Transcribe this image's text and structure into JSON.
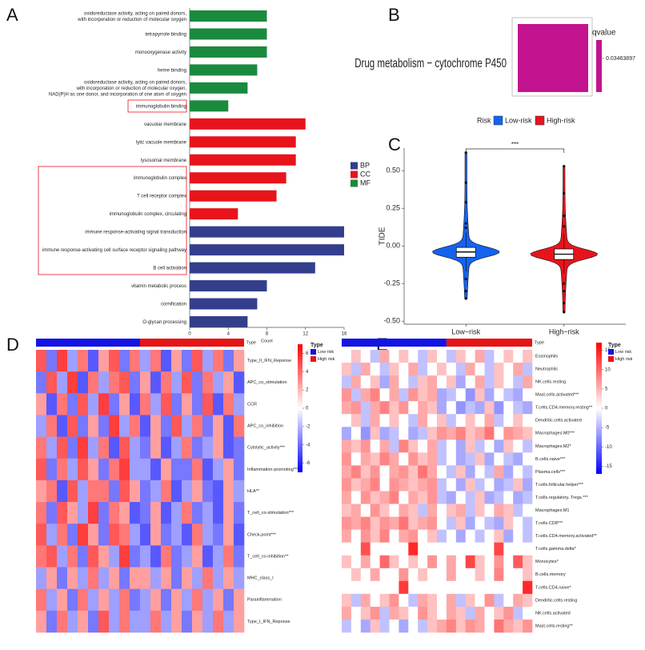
{
  "chart_data": [
    {
      "type": "bar",
      "panel_label": "A",
      "xlabel": "Count",
      "categories": [
        [
          "oxidoreductase activity, acting on paired donors,",
          "with incorporation or reduction of molecular oxygen"
        ],
        [
          "tetrapyrrole binding"
        ],
        [
          "monooxygenase activity"
        ],
        [
          "heme binding"
        ],
        [
          "oxidoreductase activity, acting on paired donors,",
          "with incorporation or reduction of molecular oxygen,",
          "NAD(P)H as one donor, and incorporation of one atom of oxygen"
        ],
        [
          "immunoglobulin binding"
        ],
        [
          "vacuolar membrane"
        ],
        [
          "lytic vacuole membrane"
        ],
        [
          "lysosomal membrane"
        ],
        [
          "immunoglobulin complex"
        ],
        [
          "T cell receptor complex"
        ],
        [
          "immunoglobulin complex, circulating"
        ],
        [
          "immune response-activating signal transduction"
        ],
        [
          "immune response-activating cell surface receptor signaling pathway"
        ],
        [
          "B cell activation"
        ],
        [
          "vitamin metabolic process"
        ],
        [
          "cornification"
        ],
        [
          "O-glycan processing"
        ]
      ],
      "series": [
        {
          "name": "BP",
          "color": "#333f8c",
          "values": [
            null,
            null,
            null,
            null,
            null,
            null,
            null,
            null,
            null,
            null,
            null,
            null,
            16,
            16,
            13,
            8,
            7,
            6
          ]
        },
        {
          "name": "CC",
          "color": "#e8141c",
          "values": [
            null,
            null,
            null,
            null,
            null,
            null,
            12,
            11,
            11,
            10,
            9,
            5,
            null,
            null,
            null,
            null,
            null,
            null
          ]
        },
        {
          "name": "MF",
          "color": "#1a8a3e",
          "values": [
            8,
            8,
            8,
            7,
            6,
            4,
            null,
            null,
            null,
            null,
            null,
            null,
            null,
            null,
            null,
            null,
            null,
            null
          ]
        }
      ],
      "xlim": [
        0,
        16
      ],
      "xticks": [
        0,
        4,
        8,
        12,
        16
      ]
    },
    {
      "type": "tile",
      "panel_label": "B",
      "categories": [
        "Drug metabolism − cytochrome P450"
      ],
      "values": [
        0.03463897
      ],
      "color": "#c4138f",
      "legend_title": "qvalue",
      "legend_ticks": [
        0.03463897
      ]
    },
    {
      "type": "violin",
      "panel_label": "C",
      "ylabel": "TIDE",
      "legend_title": "Risk",
      "annotation": "***",
      "categories": [
        "Low−risk",
        "High−risk"
      ],
      "series": [
        {
          "name": "Low-risk",
          "color": "#1463f0",
          "min": -0.17,
          "q1": -0.075,
          "median": -0.04,
          "q3": -0.01,
          "max": 0.09,
          "outliers": [
            0.62,
            0.42,
            0.29,
            0.15,
            0.12,
            -0.22,
            -0.3,
            -0.35
          ]
        },
        {
          "name": "High-risk",
          "color": "#e8141c",
          "min": -0.18,
          "q1": -0.09,
          "median": -0.055,
          "q3": -0.02,
          "max": 0.08,
          "outliers": [
            0.53,
            0.35,
            0.2,
            0.13,
            -0.25,
            -0.3,
            -0.38,
            -0.44
          ]
        }
      ],
      "ylim": [
        -0.52,
        0.65
      ],
      "yticks": [
        {
          "value": -0.5,
          "label": "-0.50"
        },
        {
          "value": -0.25,
          "label": "-0.25"
        },
        {
          "value": 0,
          "label": "0.00"
        },
        {
          "value": 0.25,
          "label": "0.25"
        },
        {
          "value": 0.5,
          "label": "0.50"
        }
      ]
    },
    {
      "type": "heatmap",
      "panel_label": "D",
      "legend_title": "Type",
      "groups": [
        {
          "name": "Low risk",
          "color": "#1414e6",
          "size": 10
        },
        {
          "name": "High risk",
          "color": "#e61414",
          "size": 10
        }
      ],
      "rows": [
        "Type_II_IFN_Reponse",
        "APC_co_stimulation",
        "CCR",
        "APC_co_inhibition",
        "Cytolytic_activity***",
        "Inflammation-promoting***",
        "HLA**",
        "T_cell_co-stimulation***",
        "Check-point***",
        "T_cell_co-inhibition**",
        "MHC_class_I",
        "Parainflammation",
        "Type_I_IFN_Reponse"
      ],
      "values": [
        [
          3,
          -2,
          4,
          -1,
          2,
          -3,
          1,
          3,
          -2,
          2,
          -1,
          2,
          -3,
          1,
          -2,
          3,
          -1,
          2,
          -2,
          1
        ],
        [
          -2,
          3,
          -1,
          4,
          -3,
          2,
          -1,
          2,
          3,
          -2,
          1,
          -3,
          2,
          -1,
          3,
          -2,
          2,
          -1,
          1,
          -3
        ],
        [
          1,
          -3,
          2,
          -2,
          3,
          -1,
          4,
          -2,
          1,
          -3,
          2,
          -1,
          3,
          -2,
          1,
          -2,
          3,
          -3,
          2,
          -1
        ],
        [
          -1,
          2,
          -3,
          3,
          -2,
          1,
          -2,
          4,
          -1,
          2,
          -3,
          1,
          -2,
          3,
          -1,
          2,
          -2,
          1,
          -3,
          2
        ],
        [
          2,
          -1,
          3,
          -2,
          4,
          -1,
          2,
          -3,
          3,
          -1,
          -2,
          1,
          -3,
          -1,
          2,
          -2,
          -1,
          1,
          -3,
          -2
        ],
        [
          3,
          -2,
          2,
          -1,
          3,
          1,
          -2,
          2,
          4,
          -1,
          -1,
          -3,
          1,
          -2,
          -2,
          2,
          -3,
          -1,
          1,
          -2
        ],
        [
          1,
          2,
          -3,
          3,
          -1,
          2,
          2,
          -2,
          3,
          1,
          -2,
          -1,
          2,
          -3,
          -1,
          1,
          -2,
          -3,
          1,
          -1
        ],
        [
          2,
          -2,
          3,
          1,
          -1,
          4,
          -2,
          2,
          1,
          -3,
          -2,
          1,
          -3,
          -1,
          2,
          -2,
          -1,
          -3,
          1,
          -2
        ],
        [
          3,
          -1,
          2,
          -2,
          4,
          1,
          -2,
          3,
          2,
          -1,
          -3,
          1,
          -2,
          -1,
          -3,
          2,
          -1,
          -2,
          1,
          -3
        ],
        [
          2,
          3,
          -1,
          2,
          -2,
          3,
          1,
          -1,
          4,
          -2,
          -1,
          -3,
          2,
          -2,
          -1,
          1,
          -3,
          -1,
          2,
          -2
        ],
        [
          -1,
          1,
          -2,
          1,
          -1,
          2,
          -1,
          1,
          -2,
          1,
          1,
          -1,
          1,
          -2,
          1,
          -1,
          2,
          -1,
          1,
          -1
        ],
        [
          2,
          -1,
          1,
          -2,
          2,
          -1,
          1,
          -1,
          2,
          -2,
          -1,
          1,
          -2,
          1,
          -1,
          2,
          -1,
          1,
          -2,
          1
        ],
        [
          1,
          -2,
          2,
          -1,
          1,
          -2,
          3,
          -1,
          2,
          -1,
          -1,
          2,
          -1,
          1,
          -2,
          1,
          -1,
          2,
          -1,
          1
        ]
      ],
      "clim": [
        -7,
        7
      ],
      "colorbar_ticks": [
        6,
        4,
        2,
        0,
        -2,
        -4,
        -6
      ]
    },
    {
      "type": "heatmap",
      "panel_label": "E",
      "legend_title": "Type",
      "groups": [
        {
          "name": "Low risk",
          "color": "#1414e6",
          "size": 11
        },
        {
          "name": "High risk",
          "color": "#e61414",
          "size": 9
        }
      ],
      "rows": [
        "Eosinophils",
        "Neutrophils",
        "NK.cells.resting",
        "Mast.cells.activated***",
        "T.cells.CD4.memory.resting**",
        "Dendritic.cells.activated",
        "Macrophages.M0***",
        "Macrophages.M2*",
        "B.cells.naive***",
        "Plasma.cells***",
        "T.cells.follicular.helper***",
        "T.cells.regulatory..Tregs.***",
        "Macrophages.M1",
        "T.cells.CD8***",
        "T.cells.CD4.memory.activated**",
        "T.cells.gamma.delta*",
        "Monocytes*",
        "B.cells.memory",
        "T.cells.CD4.naive*",
        "Dendritic.cells.resting",
        "NK.cells.activated",
        "Mast.cells.resting**"
      ],
      "values": [
        [
          0,
          1,
          0,
          -1,
          2,
          0,
          1,
          0,
          -1,
          1,
          0,
          -1,
          1,
          0,
          2,
          -1,
          0,
          1,
          0,
          1
        ],
        [
          1,
          -1,
          2,
          0,
          -1,
          1,
          0,
          2,
          -1,
          0,
          1,
          0,
          -1,
          2,
          0,
          -1,
          1,
          0,
          2,
          -1
        ],
        [
          -1,
          2,
          0,
          1,
          -2,
          2,
          0,
          -1,
          1,
          2,
          0,
          1,
          -2,
          0,
          2,
          -1,
          1,
          0,
          -1,
          2
        ],
        [
          3,
          -1,
          2,
          4,
          0,
          2,
          -1,
          3,
          1,
          2,
          -2,
          -1,
          0,
          -3,
          1,
          -2,
          0,
          -1,
          -2,
          0
        ],
        [
          2,
          3,
          -1,
          2,
          4,
          1,
          3,
          0,
          2,
          1,
          -2,
          0,
          -3,
          -1,
          -2,
          1,
          -3,
          0,
          -1,
          -2
        ],
        [
          0,
          1,
          -1,
          2,
          0,
          1,
          0,
          -1,
          2,
          0,
          1,
          -1,
          0,
          1,
          0,
          2,
          -1,
          0,
          1,
          0
        ],
        [
          -2,
          0,
          -3,
          1,
          -2,
          -1,
          0,
          -2,
          -1,
          1,
          3,
          2,
          4,
          1,
          2,
          5,
          0,
          3,
          2,
          1
        ],
        [
          2,
          1,
          3,
          0,
          2,
          -1,
          4,
          1,
          0,
          2,
          -1,
          0,
          -2,
          1,
          -1,
          0,
          -2,
          1,
          0,
          -1
        ],
        [
          3,
          0,
          2,
          1,
          4,
          2,
          0,
          3,
          1,
          2,
          -1,
          0,
          -2,
          -1,
          1,
          -2,
          0,
          -1,
          -2,
          0
        ],
        [
          2,
          4,
          1,
          3,
          0,
          2,
          3,
          1,
          5,
          2,
          0,
          -1,
          1,
          -2,
          0,
          -1,
          2,
          -2,
          0,
          -1
        ],
        [
          3,
          1,
          2,
          4,
          0,
          3,
          2,
          1,
          2,
          3,
          -1,
          0,
          -2,
          1,
          -1,
          0,
          -2,
          -1,
          1,
          -2
        ],
        [
          2,
          0,
          3,
          1,
          2,
          4,
          0,
          2,
          1,
          3,
          -1,
          -2,
          0,
          -1,
          1,
          -2,
          -1,
          0,
          -2,
          -1
        ],
        [
          1,
          2,
          0,
          3,
          1,
          0,
          2,
          1,
          -1,
          2,
          0,
          1,
          2,
          -1,
          1,
          0,
          2,
          1,
          -1,
          0
        ],
        [
          3,
          2,
          4,
          1,
          3,
          2,
          5,
          1,
          2,
          3,
          0,
          -1,
          1,
          -2,
          0,
          -1,
          -2,
          1,
          0,
          -1
        ],
        [
          2,
          0,
          3,
          1,
          4,
          0,
          2,
          3,
          0,
          1,
          -1,
          0,
          -2,
          0,
          -1,
          0,
          1,
          -2,
          0,
          -1
        ],
        [
          0,
          0,
          8,
          0,
          0,
          0,
          0,
          12,
          0,
          0,
          0,
          0,
          0,
          0,
          0,
          0,
          9,
          0,
          0,
          0
        ],
        [
          1,
          0,
          2,
          0,
          6,
          1,
          0,
          1,
          0,
          3,
          0,
          2,
          0,
          9,
          1,
          0,
          3,
          0,
          7,
          1
        ],
        [
          0,
          1,
          0,
          2,
          0,
          0,
          3,
          0,
          1,
          0,
          0,
          2,
          0,
          0,
          1,
          0,
          4,
          0,
          0,
          1
        ],
        [
          0,
          0,
          0,
          0,
          0,
          0,
          10,
          0,
          0,
          0,
          0,
          0,
          0,
          0,
          0,
          0,
          0,
          0,
          0,
          12
        ],
        [
          1,
          -1,
          2,
          0,
          1,
          3,
          0,
          -1,
          2,
          1,
          0,
          2,
          -1,
          1,
          0,
          3,
          -1,
          0,
          2,
          1
        ],
        [
          2,
          0,
          1,
          3,
          -1,
          2,
          1,
          0,
          3,
          1,
          0,
          2,
          1,
          -1,
          2,
          0,
          1,
          3,
          -1,
          0
        ],
        [
          -1,
          0,
          -2,
          1,
          -1,
          0,
          -2,
          0,
          -1,
          1,
          2,
          4,
          1,
          3,
          2,
          0,
          5,
          2,
          1,
          3
        ]
      ],
      "clim": [
        -17,
        17
      ],
      "colorbar_ticks": [
        15,
        10,
        5,
        0,
        -5,
        -10,
        -15
      ]
    }
  ]
}
